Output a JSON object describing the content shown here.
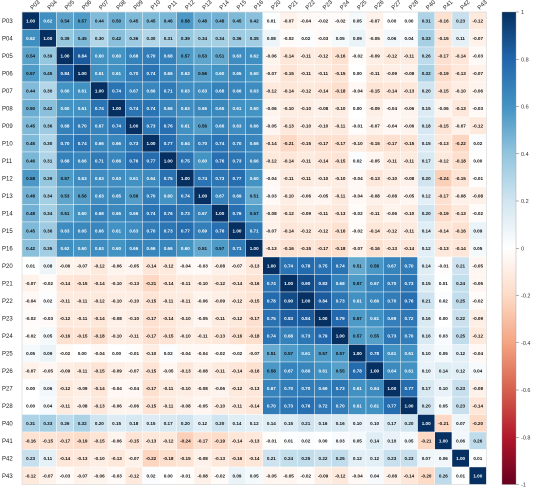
{
  "chart_data": {
    "type": "heatmap",
    "title": "",
    "xlabel": "",
    "ylabel": "",
    "labels": [
      "P03",
      "P04",
      "P05",
      "P06",
      "P07",
      "P08",
      "P09",
      "P10",
      "P11",
      "P12",
      "P13",
      "P14",
      "P15",
      "P16",
      "P20",
      "P21",
      "P22",
      "P23",
      "P24",
      "P25",
      "P26",
      "P27",
      "P28",
      "P40",
      "P41",
      "P42",
      "P43"
    ],
    "matrix": [
      [
        1.0,
        0.62,
        0.54,
        0.57,
        0.44,
        0.5,
        0.45,
        0.45,
        0.46,
        0.58,
        0.48,
        0.48,
        0.45,
        0.42,
        0.01,
        -0.07,
        -0.04,
        -0.02,
        -0.02,
        0.05,
        -0.07,
        0.0,
        0.0,
        0.31,
        -0.16,
        0.23,
        -0.12
      ],
      [
        0.62,
        1.0,
        0.39,
        0.45,
        0.3,
        0.42,
        0.36,
        0.3,
        0.31,
        0.39,
        0.34,
        0.34,
        0.36,
        0.35,
        0.08,
        -0.02,
        0.02,
        -0.03,
        0.05,
        0.09,
        -0.05,
        0.06,
        0.04,
        0.33,
        -0.15,
        0.11,
        -0.07
      ],
      [
        0.54,
        0.39,
        1.0,
        0.84,
        0.6,
        0.6,
        0.68,
        0.7,
        0.68,
        0.57,
        0.53,
        0.51,
        0.63,
        0.62,
        -0.06,
        -0.14,
        -0.11,
        -0.12,
        -0.16,
        -0.02,
        -0.09,
        -0.12,
        -0.11,
        0.26,
        -0.17,
        -0.14,
        -0.03
      ],
      [
        0.57,
        0.45,
        0.84,
        1.0,
        0.61,
        0.61,
        0.7,
        0.74,
        0.66,
        0.63,
        0.56,
        0.6,
        0.65,
        0.6,
        -0.07,
        -0.15,
        -0.11,
        -0.11,
        -0.15,
        0.0,
        -0.11,
        -0.09,
        -0.08,
        0.32,
        -0.19,
        -0.13,
        -0.07
      ],
      [
        0.44,
        0.3,
        0.6,
        0.61,
        1.0,
        0.74,
        0.67,
        0.66,
        0.71,
        0.63,
        0.63,
        0.68,
        0.66,
        0.63,
        -0.12,
        -0.14,
        -0.12,
        -0.14,
        -0.18,
        -0.04,
        -0.15,
        -0.14,
        -0.13,
        0.2,
        -0.15,
        -0.1,
        -0.06
      ],
      [
        0.5,
        0.42,
        0.6,
        0.61,
        0.74,
        1.0,
        0.74,
        0.74,
        0.66,
        0.63,
        0.65,
        0.65,
        0.61,
        0.6,
        -0.06,
        -0.1,
        -0.1,
        -0.08,
        -0.1,
        0.0,
        -0.09,
        -0.04,
        -0.06,
        0.15,
        -0.06,
        -0.13,
        -0.03
      ],
      [
        0.45,
        0.36,
        0.68,
        0.7,
        0.67,
        0.74,
        1.0,
        0.73,
        0.76,
        0.61,
        0.56,
        0.66,
        0.63,
        0.66,
        -0.05,
        -0.13,
        -0.1,
        -0.1,
        -0.11,
        -0.01,
        -0.07,
        -0.04,
        -0.06,
        0.18,
        -0.15,
        -0.07,
        -0.12
      ],
      [
        0.45,
        0.3,
        0.7,
        0.74,
        0.66,
        0.66,
        0.73,
        1.0,
        0.77,
        0.64,
        0.7,
        0.74,
        0.7,
        0.66,
        -0.14,
        -0.21,
        -0.15,
        -0.17,
        -0.17,
        -0.1,
        -0.15,
        -0.17,
        -0.15,
        0.15,
        -0.13,
        -0.22,
        0.02
      ],
      [
        0.46,
        0.31,
        0.68,
        0.66,
        0.71,
        0.66,
        0.76,
        0.77,
        1.0,
        0.75,
        0.6,
        0.76,
        0.73,
        0.66,
        -0.12,
        -0.14,
        -0.11,
        -0.14,
        -0.15,
        0.02,
        -0.05,
        -0.11,
        -0.11,
        0.17,
        -0.12,
        -0.18,
        0.0
      ],
      [
        0.58,
        0.39,
        0.57,
        0.63,
        0.63,
        0.63,
        0.61,
        0.64,
        0.75,
        1.0,
        0.74,
        0.73,
        0.77,
        0.6,
        -0.04,
        -0.11,
        -0.11,
        -0.1,
        -0.1,
        -0.04,
        -0.13,
        -0.1,
        -0.08,
        0.2,
        -0.24,
        -0.15,
        -0.01
      ],
      [
        0.48,
        0.34,
        0.53,
        0.56,
        0.63,
        0.65,
        0.56,
        0.7,
        0.6,
        0.74,
        1.0,
        0.67,
        0.69,
        0.51,
        -0.03,
        -0.1,
        -0.06,
        -0.05,
        -0.11,
        -0.04,
        -0.08,
        -0.08,
        -0.05,
        0.12,
        -0.17,
        -0.08,
        -0.08
      ],
      [
        0.48,
        0.34,
        0.51,
        0.6,
        0.68,
        0.65,
        0.66,
        0.74,
        0.76,
        0.73,
        0.67,
        1.0,
        0.76,
        0.57,
        -0.08,
        -0.12,
        -0.09,
        -0.11,
        -0.13,
        -0.02,
        -0.11,
        -0.06,
        -0.1,
        0.2,
        -0.19,
        -0.13,
        -0.02
      ],
      [
        0.45,
        0.36,
        0.63,
        0.65,
        0.66,
        0.61,
        0.63,
        0.7,
        0.73,
        0.77,
        0.69,
        0.76,
        1.0,
        0.71,
        -0.07,
        -0.14,
        -0.12,
        -0.12,
        -0.16,
        -0.02,
        -0.14,
        -0.12,
        -0.11,
        0.14,
        -0.14,
        -0.16,
        0.09
      ],
      [
        0.42,
        0.35,
        0.62,
        0.6,
        0.63,
        0.6,
        0.66,
        0.66,
        0.66,
        0.6,
        0.51,
        0.57,
        0.71,
        1.0,
        -0.13,
        -0.16,
        -0.15,
        -0.17,
        -0.18,
        -0.07,
        -0.16,
        -0.13,
        -0.14,
        0.12,
        -0.13,
        -0.14,
        0.05
      ],
      [
        0.01,
        0.08,
        -0.06,
        -0.07,
        -0.12,
        -0.06,
        -0.05,
        -0.14,
        -0.12,
        -0.04,
        -0.03,
        -0.08,
        -0.07,
        -0.13,
        1.0,
        0.74,
        0.78,
        0.75,
        0.74,
        0.51,
        0.58,
        0.67,
        0.7,
        0.14,
        -0.01,
        0.21,
        -0.05
      ],
      [
        -0.07,
        -0.02,
        -0.14,
        -0.15,
        -0.14,
        -0.1,
        -0.13,
        -0.21,
        -0.14,
        -0.11,
        -0.1,
        -0.12,
        -0.14,
        -0.16,
        0.74,
        1.0,
        0.9,
        0.83,
        0.68,
        0.57,
        0.67,
        0.7,
        0.73,
        0.15,
        0.01,
        0.24,
        -0.05
      ],
      [
        -0.04,
        0.02,
        -0.11,
        -0.11,
        -0.12,
        -0.1,
        -0.1,
        -0.15,
        -0.11,
        -0.11,
        -0.06,
        -0.09,
        -0.12,
        -0.15,
        0.78,
        0.9,
        1.0,
        0.84,
        0.73,
        0.61,
        0.66,
        0.7,
        0.76,
        0.21,
        0.02,
        0.25,
        -0.02
      ],
      [
        -0.02,
        -0.03,
        -0.12,
        -0.11,
        -0.14,
        -0.08,
        -0.1,
        -0.17,
        -0.14,
        -0.1,
        -0.05,
        -0.11,
        -0.12,
        -0.17,
        0.75,
        0.83,
        0.84,
        1.0,
        0.79,
        0.57,
        0.61,
        0.69,
        0.72,
        0.16,
        0.0,
        0.22,
        -0.09
      ],
      [
        -0.02,
        0.05,
        -0.16,
        -0.15,
        -0.18,
        -0.1,
        -0.11,
        -0.17,
        -0.15,
        -0.1,
        -0.11,
        -0.13,
        -0.16,
        -0.18,
        0.74,
        0.68,
        0.73,
        0.79,
        1.0,
        0.57,
        0.55,
        0.73,
        0.7,
        0.16,
        0.03,
        0.25,
        -0.12
      ],
      [
        0.05,
        0.09,
        -0.02,
        0.0,
        -0.04,
        0.0,
        -0.01,
        -0.1,
        0.02,
        -0.04,
        -0.04,
        -0.02,
        -0.02,
        -0.07,
        0.51,
        0.57,
        0.61,
        0.57,
        0.57,
        1.0,
        0.78,
        0.61,
        0.61,
        0.1,
        0.05,
        0.12,
        -0.04
      ],
      [
        -0.07,
        -0.05,
        -0.09,
        -0.11,
        -0.15,
        -0.09,
        -0.07,
        -0.15,
        -0.05,
        -0.13,
        -0.08,
        -0.11,
        -0.14,
        -0.16,
        0.58,
        0.67,
        0.66,
        0.61,
        0.55,
        0.78,
        1.0,
        0.64,
        0.61,
        0.1,
        0.14,
        0.12,
        0.04
      ],
      [
        0.0,
        0.06,
        -0.12,
        -0.09,
        -0.14,
        -0.04,
        -0.04,
        -0.17,
        -0.11,
        -0.1,
        -0.08,
        -0.06,
        -0.12,
        -0.13,
        0.67,
        0.7,
        0.7,
        0.69,
        0.73,
        0.61,
        0.64,
        1.0,
        0.77,
        0.17,
        0.1,
        0.23,
        -0.08
      ],
      [
        0.0,
        0.04,
        -0.11,
        -0.08,
        -0.13,
        -0.06,
        -0.06,
        -0.15,
        -0.11,
        -0.08,
        -0.05,
        -0.1,
        -0.11,
        -0.14,
        0.7,
        0.73,
        0.76,
        0.72,
        0.7,
        0.61,
        0.61,
        0.77,
        1.0,
        0.2,
        0.05,
        0.23,
        -0.14
      ],
      [
        0.31,
        0.33,
        0.26,
        0.32,
        0.2,
        0.15,
        0.18,
        0.15,
        0.17,
        0.2,
        0.12,
        0.2,
        0.14,
        0.12,
        0.14,
        0.15,
        0.21,
        0.16,
        0.16,
        0.1,
        0.1,
        0.17,
        0.2,
        1.0,
        -0.21,
        0.07,
        -0.2
      ],
      [
        -0.16,
        -0.15,
        -0.17,
        -0.19,
        -0.15,
        -0.06,
        -0.15,
        -0.13,
        -0.12,
        -0.24,
        -0.17,
        -0.19,
        -0.14,
        -0.13,
        -0.01,
        0.01,
        0.02,
        0.0,
        0.03,
        0.05,
        0.14,
        0.1,
        0.05,
        -0.21,
        1.0,
        0.06,
        0.26
      ],
      [
        0.23,
        0.11,
        -0.14,
        -0.13,
        -0.1,
        -0.13,
        -0.07,
        -0.22,
        -0.18,
        -0.15,
        -0.08,
        -0.13,
        -0.16,
        -0.14,
        0.21,
        0.24,
        0.25,
        0.22,
        0.25,
        0.12,
        0.12,
        0.23,
        0.23,
        0.07,
        0.06,
        1.0,
        0.01
      ],
      [
        -0.12,
        -0.07,
        -0.03,
        -0.07,
        -0.06,
        -0.03,
        -0.12,
        0.02,
        0.0,
        -0.01,
        -0.08,
        -0.02,
        0.09,
        0.05,
        -0.05,
        -0.05,
        -0.02,
        -0.09,
        -0.12,
        -0.04,
        0.04,
        -0.08,
        -0.14,
        -0.2,
        0.26,
        0.01,
        1.0
      ]
    ],
    "colorbar": {
      "ticks": [
        "1",
        "0.8",
        "0.6",
        "0.4",
        "0.2",
        "0",
        "-0.2",
        "-0.4",
        "-0.6",
        "-0.8",
        "-1"
      ],
      "range": [
        -1,
        1
      ]
    },
    "colors": {
      "negative_end": "#67001f",
      "mid": "#ffffff",
      "positive_end": "#053061"
    },
    "grid": false,
    "legend": "right colorbar"
  }
}
